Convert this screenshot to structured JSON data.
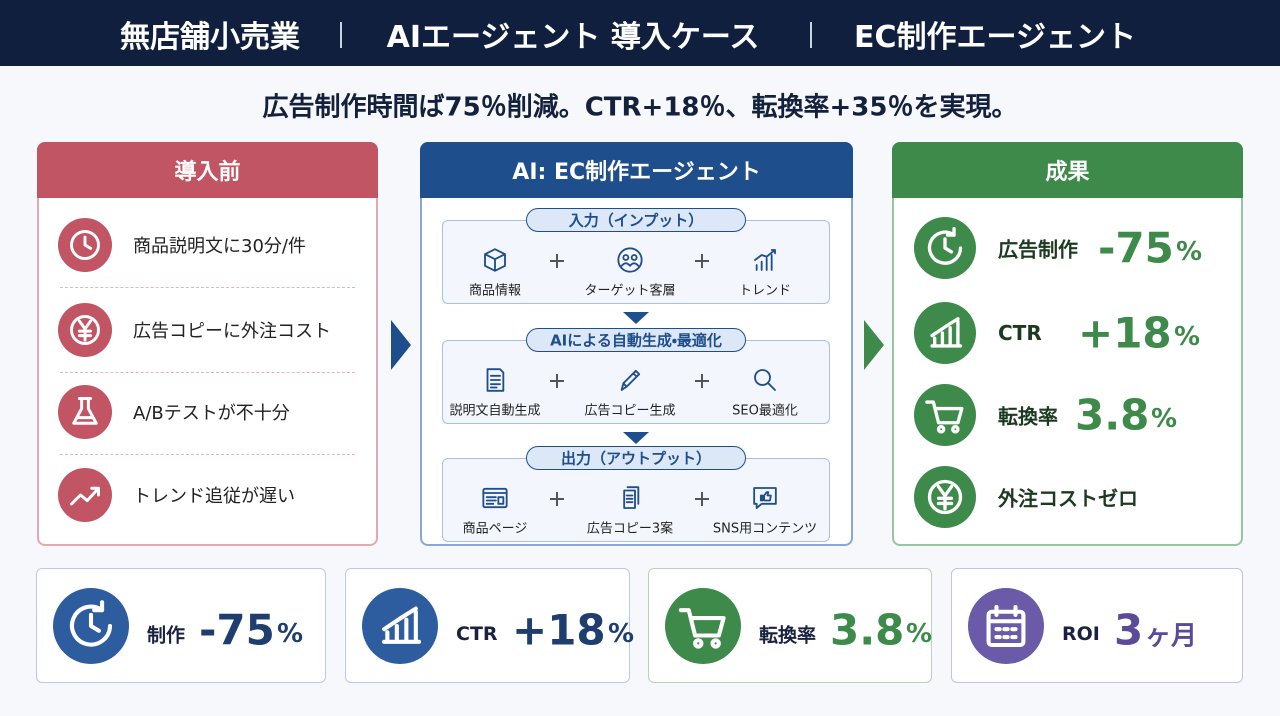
{
  "header": {
    "segments": [
      "無店舗小売業",
      "AIエージェント 導入ケース",
      "EC制作エージェント"
    ]
  },
  "subtitle": "広告制作時間ば75％削減。CTR+18％、転換率+35％を実現。",
  "before": {
    "title": "導入前",
    "items": [
      "商品説明文に30分/件",
      "広告コピーに外注コスト",
      "A/Bテストが不十分",
      "トレンド追従が遅い"
    ]
  },
  "agent": {
    "title": "AI: EC制作エージェント",
    "stages": [
      {
        "title": "入力（インプット）",
        "items": [
          "商品情報",
          "ターゲット客層",
          "トレンド"
        ]
      },
      {
        "title": "AIによる自動生成・最適化",
        "items": [
          "説明文自動生成",
          "広告コピー生成",
          "SEO最適化"
        ]
      },
      {
        "title": "出力（アウトプット）",
        "items": [
          "商品ページ",
          "広告コピー3案",
          "SNS用コンテンツ"
        ]
      }
    ]
  },
  "results": {
    "title": "成果",
    "items": [
      {
        "label": "広告制作",
        "value": "-75",
        "unit": "%"
      },
      {
        "label": "CTR",
        "value": "+18",
        "unit": "%"
      },
      {
        "label": "転換率",
        "value": "3.8",
        "unit": "%"
      },
      {
        "label": "外注コストゼロ"
      }
    ]
  },
  "kpis": [
    {
      "label": "制作",
      "value": "-75",
      "unit": "%"
    },
    {
      "label": "CTR",
      "value": "+18",
      "unit": "%"
    },
    {
      "label": "転換率",
      "value": "3.8",
      "unit": "%"
    },
    {
      "label": "ROI",
      "value": "3",
      "unit": "ヶ月"
    }
  ]
}
